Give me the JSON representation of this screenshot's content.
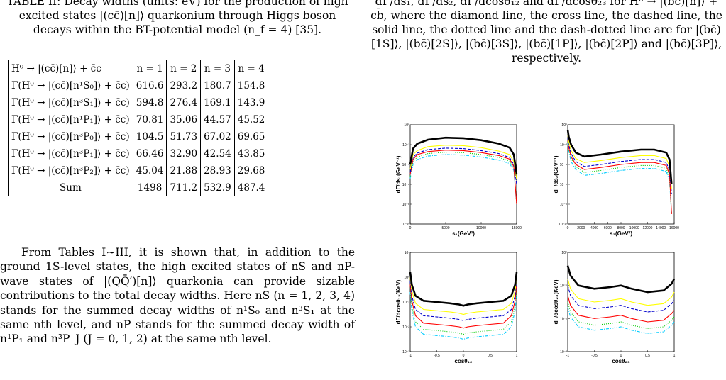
{
  "table_caption": "TABLE II: Decay widths (units: eV) for the production of high excited states |(cc̄)[n]⟩ quarkonium through Higgs boson decays within the BT-potential model (n_f = 4) [35].",
  "table": {
    "headers": [
      "H⁰ → |(cc̄)[n]⟩ + c̄c",
      "n = 1",
      "n = 2",
      "n = 3",
      "n = 4"
    ],
    "rows": [
      [
        "Γ(H⁰ → |(cc̄)[n¹S₀]⟩ + c̄c)",
        "616.6",
        "293.2",
        "180.7",
        "154.8"
      ],
      [
        "Γ(H⁰ → |(cc̄)[n³S₁]⟩ + c̄c)",
        "594.8",
        "276.4",
        "169.1",
        "143.9"
      ],
      [
        "Γ(H⁰ → |(cc̄)[n¹P₁]⟩ + c̄c)",
        "70.81",
        "35.06",
        "44.57",
        "45.52"
      ],
      [
        "Γ(H⁰ → |(cc̄)[n³P₀]⟩ + c̄c)",
        "104.5",
        "51.73",
        "67.02",
        "69.65"
      ],
      [
        "Γ(H⁰ → |(cc̄)[n³P₁]⟩ + c̄c)",
        "66.46",
        "32.90",
        "42.54",
        "43.85"
      ],
      [
        "Γ(H⁰ → |(cc̄)[n³P₂]⟩ + c̄c)",
        "45.04",
        "21.88",
        "28.93",
        "29.68"
      ]
    ],
    "sum_row": [
      "Sum",
      "1498",
      "711.2",
      "532.9",
      "487.4"
    ]
  },
  "paragraph": "From Tables I∼III, it is shown that, in addition to the ground 1S-level states, the high excited states of nS and nP-wave states of |(QQ̄′)[n]⟩ quarkonia can provide sizable contributions to the total decay widths. Here nS (n = 1, 2, 3, 4) stands for the summed decay widths of n¹S₀ and n³S₁ at the same nth level, and nP stands for the summed decay width of n¹P₁ and n³P_J (J = 0, 1, 2) at the same nth level.",
  "figure_caption": "dΓ/ds₁, dΓ/ds₂, dΓ/dcosθ₁₂ and dΓ/dcosθ₂₃ for H⁰ → |(bc̄)[n]⟩ + cb̄, where the diamond line, the cross line, the dashed line, the solid line, the dotted line and the dash-dotted line are for |(bc̄)[1S]⟩, |(bc̄)[2S]⟩, |(bc̄)[3S]⟩, |(bc̄)[1P]⟩, |(bc̄)[2P]⟩ and |(bc̄)[3P]⟩, respectively.",
  "series_colors": [
    "#000000",
    "#ffff00",
    "#0000cc",
    "#ff0000",
    "#00cc00",
    "#00ccff"
  ],
  "chart_data": [
    {
      "type": "line",
      "ylabel": "dΓ/ds₁(GeV⁻¹)",
      "xlabel": "s₁(GeV²)",
      "xlim": [
        0,
        15000
      ],
      "xticks": [
        "0",
        "5000",
        "10000",
        "15000"
      ],
      "yticks": [
        "10⁻¹⁰",
        "10⁻⁸",
        "10⁻⁶",
        "10⁻⁴",
        "10⁻²",
        "10⁰"
      ],
      "log_y": true,
      "x": [
        0,
        400,
        1000,
        2500,
        5000,
        7500,
        10000,
        12500,
        14000,
        14600,
        15000
      ],
      "series": [
        {
          "values": [
            -4,
            -2.4,
            -1.9,
            -1.5,
            -1.3,
            -1.35,
            -1.55,
            -1.9,
            -2.3,
            -3.0,
            -5
          ]
        },
        {
          "values": [
            -4.5,
            -3.0,
            -2.6,
            -2.2,
            -2.05,
            -2.1,
            -2.3,
            -2.65,
            -3.0,
            -3.7,
            -5.5
          ]
        },
        {
          "values": [
            -4.8,
            -3.3,
            -2.85,
            -2.5,
            -2.35,
            -2.4,
            -2.6,
            -2.9,
            -3.3,
            -4.0,
            -6
          ]
        },
        {
          "values": [
            -5.0,
            -3.5,
            -3.0,
            -2.7,
            -2.55,
            -2.6,
            -2.8,
            -3.1,
            -3.45,
            -4.2,
            -8
          ]
        },
        {
          "values": [
            -5.2,
            -3.7,
            -3.25,
            -2.9,
            -2.75,
            -2.8,
            -3.0,
            -3.3,
            -3.65,
            -4.4,
            -8
          ]
        },
        {
          "values": [
            -5.4,
            -4.0,
            -3.5,
            -3.15,
            -3.0,
            -3.05,
            -3.25,
            -3.55,
            -3.9,
            -4.6,
            -8
          ]
        }
      ]
    },
    {
      "type": "line",
      "ylabel": "dΓ/ds₂(GeV⁻¹)",
      "xlabel": "s₂(GeV²)",
      "xlim": [
        0,
        16000
      ],
      "xticks": [
        "0",
        "2000",
        "4000",
        "6000",
        "8000",
        "10000",
        "12000",
        "14000",
        "16000"
      ],
      "yticks": [
        "10⁻¹⁰",
        "10⁻⁸",
        "10⁻⁶",
        "10⁻⁴",
        "10⁻²",
        "10⁰"
      ],
      "log_y": true,
      "x": [
        0,
        150,
        500,
        1200,
        2500,
        5000,
        8000,
        11000,
        13000,
        14800,
        15300,
        15600
      ],
      "series": [
        {
          "values": [
            -0.5,
            -1.2,
            -2.0,
            -2.8,
            -3.2,
            -3.0,
            -2.7,
            -2.5,
            -2.5,
            -2.8,
            -3.5,
            -6
          ]
        },
        {
          "values": [
            -1.0,
            -1.7,
            -2.6,
            -3.4,
            -3.8,
            -3.6,
            -3.3,
            -3.1,
            -3.1,
            -3.4,
            -4.2,
            -6.5
          ]
        },
        {
          "values": [
            -1.3,
            -2.0,
            -2.9,
            -3.7,
            -4.2,
            -4.0,
            -3.7,
            -3.5,
            -3.5,
            -3.8,
            -4.6,
            -7
          ]
        },
        {
          "values": [
            -1.5,
            -2.3,
            -3.2,
            -4.0,
            -4.5,
            -4.3,
            -4.0,
            -3.8,
            -3.8,
            -4.1,
            -5.0,
            -9
          ]
        },
        {
          "values": [
            -1.7,
            -2.5,
            -3.4,
            -4.2,
            -4.8,
            -4.6,
            -4.3,
            -4.1,
            -4.1,
            -4.4,
            -5.3,
            -9
          ]
        },
        {
          "values": [
            -1.9,
            -2.7,
            -3.7,
            -4.5,
            -5.1,
            -4.9,
            -4.6,
            -4.4,
            -4.4,
            -4.7,
            -5.6,
            -9
          ]
        }
      ]
    },
    {
      "type": "line",
      "ylabel": "dΓ/dcosθ₁₂(KeV)",
      "xlabel": "cosθ₁₂",
      "xlim": [
        -1,
        1
      ],
      "xticks": [
        "-1",
        "-0.5",
        "0",
        "0.5",
        "1"
      ],
      "yticks": [
        "10⁻³",
        "10⁻²",
        "10⁻¹",
        "10⁰",
        "10¹"
      ],
      "log_y": true,
      "x": [
        -1,
        -0.97,
        -0.9,
        -0.75,
        -0.5,
        -0.25,
        -0.08,
        0,
        0.08,
        0.25,
        0.5,
        0.75,
        0.9,
        0.97,
        1
      ],
      "series": [
        {
          "values": [
            0.2,
            -0.3,
            -0.75,
            -0.95,
            -1.0,
            -1.05,
            -1.1,
            -1.15,
            -1.1,
            -1.05,
            -1.0,
            -0.95,
            -0.75,
            -0.3,
            0.2
          ]
        },
        {
          "values": [
            0.0,
            -0.55,
            -1.05,
            -1.3,
            -1.35,
            -1.4,
            -1.45,
            -1.5,
            -1.45,
            -1.4,
            -1.35,
            -1.3,
            -1.05,
            -0.55,
            0.0
          ]
        },
        {
          "values": [
            -0.15,
            -0.75,
            -1.3,
            -1.55,
            -1.6,
            -1.65,
            -1.7,
            -1.75,
            -1.7,
            -1.65,
            -1.6,
            -1.55,
            -1.3,
            -0.75,
            -0.15
          ]
        },
        {
          "values": [
            -0.3,
            -0.95,
            -1.55,
            -1.85,
            -1.9,
            -1.95,
            -2.0,
            -2.05,
            -2.0,
            -1.95,
            -1.9,
            -1.85,
            -1.55,
            -0.95,
            -0.3
          ]
        },
        {
          "values": [
            -0.45,
            -1.15,
            -1.8,
            -2.1,
            -2.15,
            -2.2,
            -2.25,
            -2.3,
            -2.25,
            -2.2,
            -2.15,
            -2.1,
            -1.8,
            -1.15,
            -0.45
          ]
        },
        {
          "values": [
            -0.6,
            -1.35,
            -2.0,
            -2.3,
            -2.35,
            -2.4,
            -2.45,
            -2.5,
            -2.45,
            -2.4,
            -2.35,
            -2.3,
            -2.0,
            -1.35,
            -0.6
          ]
        }
      ]
    },
    {
      "type": "line",
      "ylabel": "dΓ/dcosθ₂₃(KeV)",
      "xlabel": "cosθ₂₃",
      "xlim": [
        -1,
        1
      ],
      "xticks": [
        "-1",
        "-0.5",
        "0",
        "0.5",
        "1"
      ],
      "yticks": [
        "10⁻³",
        "10⁻²",
        "10⁻¹",
        "10⁰"
      ],
      "log_y": true,
      "x": [
        -1,
        -0.95,
        -0.8,
        -0.5,
        -0.2,
        0,
        0.2,
        0.5,
        0.8,
        0.95,
        1
      ],
      "series": [
        {
          "values": [
            -0.4,
            -0.7,
            -1.0,
            -1.1,
            -1.05,
            -1.0,
            -1.1,
            -1.2,
            -1.15,
            -0.95,
            -0.8
          ]
        },
        {
          "values": [
            -0.8,
            -1.1,
            -1.4,
            -1.5,
            -1.45,
            -1.4,
            -1.5,
            -1.6,
            -1.55,
            -1.35,
            -1.2
          ]
        },
        {
          "values": [
            -1.0,
            -1.3,
            -1.6,
            -1.7,
            -1.65,
            -1.6,
            -1.7,
            -1.8,
            -1.75,
            -1.55,
            -1.45
          ]
        },
        {
          "values": [
            -1.3,
            -1.6,
            -1.9,
            -2.0,
            -1.95,
            -1.9,
            -2.0,
            -2.1,
            -2.05,
            -1.85,
            -1.75
          ]
        },
        {
          "values": [
            -1.5,
            -1.8,
            -2.1,
            -2.2,
            -2.15,
            -2.1,
            -2.2,
            -2.3,
            -2.25,
            -2.05,
            -1.95
          ]
        },
        {
          "values": [
            -1.65,
            -1.95,
            -2.25,
            -2.35,
            -2.3,
            -2.25,
            -2.35,
            -2.45,
            -2.4,
            -2.2,
            -2.1
          ]
        }
      ]
    }
  ]
}
